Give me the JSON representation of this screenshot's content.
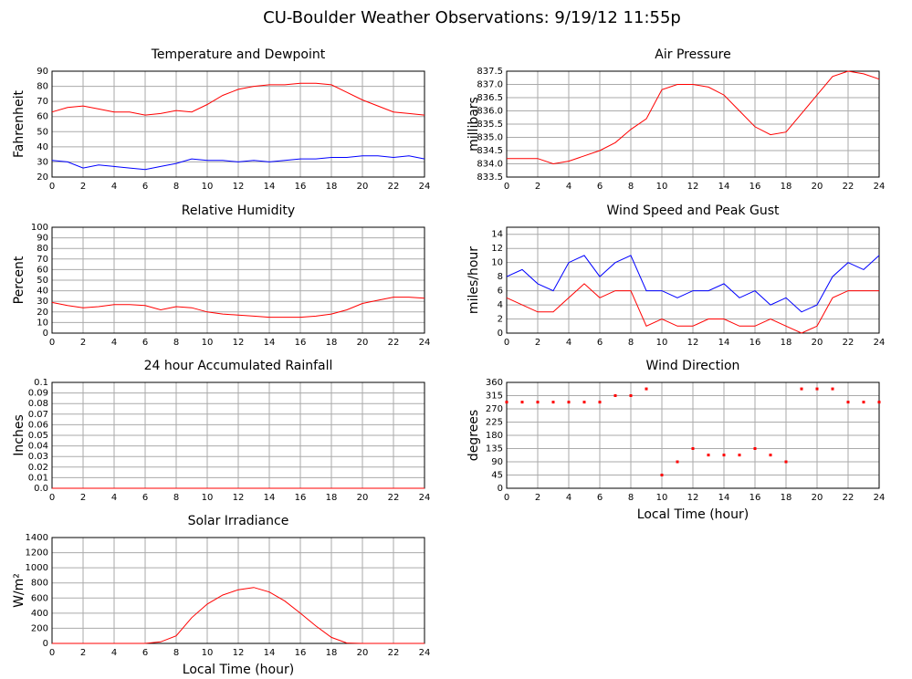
{
  "title": "CU-Boulder Weather Observations: 9/19/12 11:55p",
  "chart_data": [
    {
      "type": "line",
      "title": "Temperature and Dewpoint",
      "ylabel": "Fahrenheit",
      "x": [
        0,
        1,
        2,
        3,
        4,
        5,
        6,
        7,
        8,
        9,
        10,
        11,
        12,
        13,
        14,
        15,
        16,
        17,
        18,
        19,
        20,
        21,
        22,
        23,
        24
      ],
      "series": [
        {
          "color": "#ff0000",
          "values": [
            63,
            66,
            67,
            65,
            63,
            63,
            61,
            62,
            64,
            63,
            68,
            74,
            78,
            80,
            81,
            81,
            82,
            82,
            81,
            76,
            71,
            67,
            63,
            62,
            61
          ]
        },
        {
          "color": "#0000ff",
          "values": [
            31,
            30,
            26,
            28,
            27,
            26,
            25,
            27,
            29,
            32,
            31,
            31,
            30,
            31,
            30,
            31,
            32,
            32,
            33,
            33,
            34,
            34,
            33,
            34,
            32
          ]
        }
      ],
      "xlim": [
        0,
        24
      ],
      "xticks": [
        0,
        2,
        4,
        6,
        8,
        10,
        12,
        14,
        16,
        18,
        20,
        22,
        24
      ],
      "ylim": [
        20,
        90
      ],
      "yticks": [
        20,
        30,
        40,
        50,
        60,
        70,
        80,
        90
      ],
      "grid": true
    },
    {
      "type": "line",
      "title": "Air Pressure",
      "ylabel": "millibars",
      "x": [
        0,
        1,
        2,
        3,
        4,
        5,
        6,
        7,
        8,
        9,
        10,
        11,
        12,
        13,
        14,
        15,
        16,
        17,
        18,
        19,
        20,
        21,
        22,
        23,
        24
      ],
      "series": [
        {
          "color": "#ff0000",
          "values": [
            834.2,
            834.2,
            834.2,
            834.0,
            834.1,
            834.3,
            834.5,
            834.8,
            835.3,
            835.7,
            836.8,
            837.0,
            837.0,
            836.9,
            836.6,
            836.0,
            835.4,
            835.1,
            835.2,
            835.9,
            836.6,
            837.3,
            837.5,
            837.4,
            837.2
          ]
        }
      ],
      "xlim": [
        0,
        24
      ],
      "xticks": [
        0,
        2,
        4,
        6,
        8,
        10,
        12,
        14,
        16,
        18,
        20,
        22,
        24
      ],
      "ylim": [
        833.5,
        837.5
      ],
      "yticks": [
        833.5,
        {
          "value": 834,
          "label": "834.0"
        },
        834.5,
        {
          "value": 835,
          "label": "835.0"
        },
        835.5,
        {
          "value": 836,
          "label": "836.0"
        },
        836.5,
        {
          "value": 837,
          "label": "837.0"
        },
        837.5
      ],
      "grid": true
    },
    {
      "type": "line",
      "title": "Relative Humidity",
      "ylabel": "Percent",
      "x": [
        0,
        1,
        2,
        3,
        4,
        5,
        6,
        7,
        8,
        9,
        10,
        11,
        12,
        13,
        14,
        15,
        16,
        17,
        18,
        19,
        20,
        21,
        22,
        23,
        24
      ],
      "series": [
        {
          "color": "#ff0000",
          "values": [
            29,
            26,
            24,
            25,
            27,
            27,
            26,
            22,
            25,
            24,
            20,
            18,
            17,
            16,
            15,
            15,
            15,
            16,
            18,
            22,
            28,
            31,
            34,
            34,
            33
          ]
        }
      ],
      "xlim": [
        0,
        24
      ],
      "xticks": [
        0,
        2,
        4,
        6,
        8,
        10,
        12,
        14,
        16,
        18,
        20,
        22,
        24
      ],
      "ylim": [
        0,
        100
      ],
      "yticks": [
        0,
        10,
        20,
        30,
        40,
        50,
        60,
        70,
        80,
        90,
        100
      ],
      "grid": true
    },
    {
      "type": "line",
      "title": "Wind Speed and Peak Gust",
      "ylabel": "miles/hour",
      "x": [
        0,
        1,
        2,
        3,
        4,
        5,
        6,
        7,
        8,
        9,
        10,
        11,
        12,
        13,
        14,
        15,
        16,
        17,
        18,
        19,
        20,
        21,
        22,
        23,
        24
      ],
      "series": [
        {
          "color": "#ff0000",
          "values": [
            5,
            4,
            3,
            3,
            5,
            7,
            5,
            6,
            6,
            1,
            2,
            1,
            1,
            2,
            2,
            1,
            1,
            2,
            1,
            0,
            1,
            5,
            6,
            6,
            6
          ]
        },
        {
          "color": "#0000ff",
          "values": [
            8,
            9,
            7,
            6,
            10,
            11,
            8,
            10,
            11,
            6,
            6,
            5,
            6,
            6,
            7,
            5,
            6,
            4,
            5,
            3,
            4,
            8,
            10,
            9,
            11
          ]
        }
      ],
      "xlim": [
        0,
        24
      ],
      "xticks": [
        0,
        2,
        4,
        6,
        8,
        10,
        12,
        14,
        16,
        18,
        20,
        22,
        24
      ],
      "ylim": [
        0,
        15
      ],
      "yticks": [
        0,
        2,
        4,
        6,
        8,
        10,
        12,
        14
      ],
      "grid": true
    },
    {
      "type": "line",
      "title": "24 hour Accumulated Rainfall",
      "ylabel": "Inches",
      "x": [
        0,
        1,
        2,
        3,
        4,
        5,
        6,
        7,
        8,
        9,
        10,
        11,
        12,
        13,
        14,
        15,
        16,
        17,
        18,
        19,
        20,
        21,
        22,
        23,
        24
      ],
      "series": [
        {
          "color": "#ff0000",
          "values": [
            0,
            0,
            0,
            0,
            0,
            0,
            0,
            0,
            0,
            0,
            0,
            0,
            0,
            0,
            0,
            0,
            0,
            0,
            0,
            0,
            0,
            0,
            0,
            0,
            0
          ]
        }
      ],
      "xlim": [
        0,
        24
      ],
      "xticks": [
        0,
        2,
        4,
        6,
        8,
        10,
        12,
        14,
        16,
        18,
        20,
        22,
        24
      ],
      "ylim": [
        0,
        0.1
      ],
      "yticks": [
        {
          "value": 0,
          "label": "0.0"
        },
        0.01,
        0.02,
        0.03,
        0.04,
        0.05,
        0.06,
        0.07,
        0.08,
        0.09,
        0.1
      ],
      "grid": true
    },
    {
      "type": "scatter",
      "title": "Wind Direction",
      "ylabel": "degrees",
      "xlabel": "Local Time (hour)",
      "x": [
        0,
        1,
        2,
        3,
        4,
        5,
        6,
        7,
        8,
        9,
        10,
        11,
        12,
        13,
        14,
        15,
        16,
        17,
        18,
        19,
        20,
        21,
        22,
        23,
        24
      ],
      "series": [
        {
          "color": "#ff0000",
          "values": [
            293,
            293,
            293,
            293,
            293,
            293,
            293,
            315,
            315,
            338,
            45,
            90,
            135,
            113,
            113,
            113,
            135,
            113,
            90,
            338,
            338,
            338,
            293,
            293,
            293
          ]
        }
      ],
      "xlim": [
        0,
        24
      ],
      "xticks": [
        0,
        2,
        4,
        6,
        8,
        10,
        12,
        14,
        16,
        18,
        20,
        22,
        24
      ],
      "ylim": [
        0,
        360
      ],
      "yticks": [
        0,
        45,
        90,
        135,
        180,
        225,
        270,
        315,
        360
      ],
      "grid": true
    },
    {
      "type": "line",
      "title": "Solar Irradiance",
      "ylabel": "W/m²",
      "xlabel": "Local Time (hour)",
      "x": [
        0,
        1,
        2,
        3,
        4,
        5,
        6,
        7,
        8,
        9,
        10,
        11,
        12,
        13,
        14,
        15,
        16,
        17,
        18,
        19,
        20,
        21,
        22,
        23,
        24
      ],
      "series": [
        {
          "color": "#ff0000",
          "values": [
            0,
            0,
            0,
            0,
            0,
            0,
            0,
            20,
            100,
            340,
            520,
            640,
            710,
            740,
            680,
            560,
            400,
            230,
            80,
            5,
            0,
            0,
            0,
            0,
            0
          ]
        }
      ],
      "xlim": [
        0,
        24
      ],
      "xticks": [
        0,
        2,
        4,
        6,
        8,
        10,
        12,
        14,
        16,
        18,
        20,
        22,
        24
      ],
      "ylim": [
        0,
        1400
      ],
      "yticks": [
        0,
        200,
        400,
        600,
        800,
        1000,
        1200,
        1400
      ],
      "grid": true
    }
  ]
}
